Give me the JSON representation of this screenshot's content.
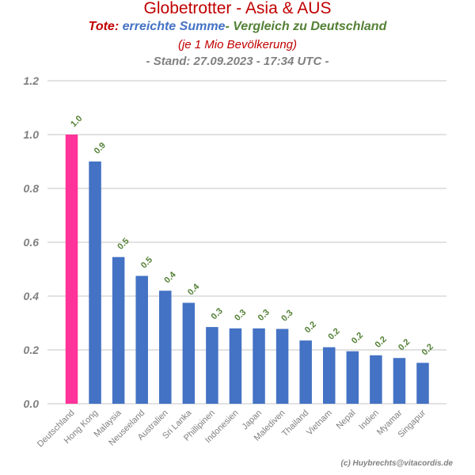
{
  "header": {
    "title": "Globetrotter - Asia & AUS",
    "subtitle_part1": "Tote:",
    "subtitle_part2": "erreichte Summe",
    "subtitle_part3": "- Vergleich zu Deutschland",
    "per_capita": "(je 1 Mio Bevölkerung)",
    "stand": "- Stand: 27.09.2023 - 17:34 UTC -"
  },
  "footer": {
    "credit": "(c) Huybrechts@vitacordis.de"
  },
  "colors": {
    "highlight": "#ff3399",
    "bar": "#4472c4",
    "data_label": "#538135",
    "grid": "#d9d9d9",
    "axis_text": "#808080"
  },
  "chart_data": {
    "type": "bar",
    "categories": [
      "Deutschland",
      "Hong Kong",
      "Malaysia",
      "Neuseeland",
      "Australien",
      "Sri Lanka",
      "Phillipinen",
      "Indonesien",
      "Japan",
      "Malediven",
      "Thailand",
      "Vietnam",
      "Nepal",
      "Indien",
      "Myamar",
      "Singapur"
    ],
    "values": [
      1.0,
      0.9,
      0.545,
      0.475,
      0.42,
      0.375,
      0.285,
      0.28,
      0.28,
      0.278,
      0.235,
      0.21,
      0.195,
      0.18,
      0.17,
      0.152
    ],
    "data_labels": [
      "1.0",
      "0.9",
      "0.5",
      "0.5",
      "0.4",
      "0.4",
      "0.3",
      "0.3",
      "0.3",
      "0.3",
      "0.2",
      "0.2",
      "0.2",
      "0.2",
      "0.2",
      "0.2"
    ],
    "highlight_index": 0,
    "yticks": [
      "0.0",
      "0.2",
      "0.4",
      "0.6",
      "0.8",
      "1.0",
      "1.2"
    ],
    "ylim": [
      0,
      1.2
    ],
    "grid": true,
    "legend": "none"
  }
}
